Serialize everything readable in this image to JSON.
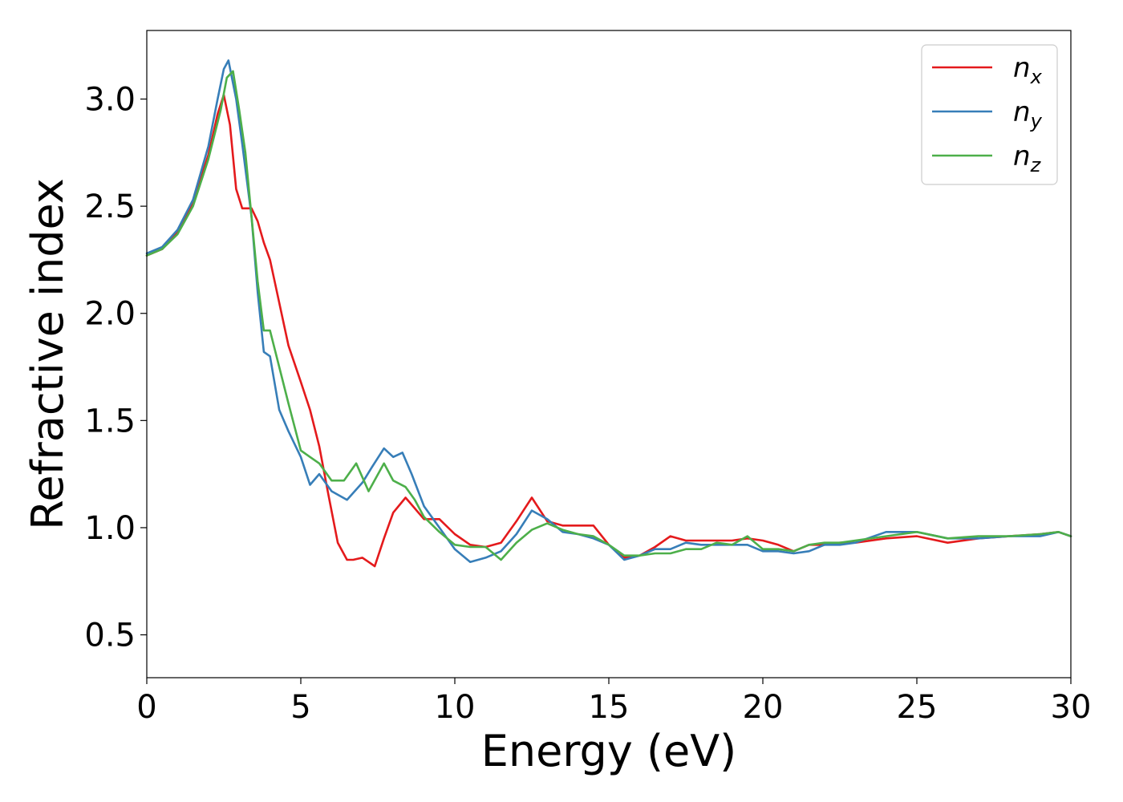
{
  "chart_data": {
    "type": "line",
    "xlabel": "Energy (eV)",
    "ylabel": "Refractive index",
    "xlim": [
      0,
      30
    ],
    "ylim": [
      0.3,
      3.32
    ],
    "xticks": [
      0,
      5,
      10,
      15,
      20,
      25,
      30
    ],
    "xtick_labels": [
      "0",
      "5",
      "10",
      "15",
      "20",
      "25",
      "30"
    ],
    "yticks": [
      0.5,
      1.0,
      1.5,
      2.0,
      2.5,
      3.0
    ],
    "ytick_labels": [
      "0.5",
      "1.0",
      "1.5",
      "2.0",
      "2.5",
      "3.0"
    ],
    "grid": false,
    "legend_position": "top-right",
    "series": [
      {
        "name": "n_x",
        "label_base": "n",
        "label_sub": "x",
        "color": "#e41a1c",
        "x": [
          0,
          0.5,
          1.0,
          1.5,
          2.0,
          2.3,
          2.5,
          2.7,
          2.9,
          3.1,
          3.4,
          3.6,
          3.8,
          4.0,
          4.3,
          4.6,
          5.0,
          5.3,
          5.6,
          5.9,
          6.2,
          6.5,
          6.7,
          7.0,
          7.2,
          7.4,
          7.7,
          8.0,
          8.4,
          8.7,
          9.0,
          9.5,
          10.0,
          10.5,
          11.0,
          11.5,
          12.0,
          12.5,
          13.0,
          13.5,
          14.0,
          14.5,
          15.0,
          15.5,
          16.0,
          16.5,
          17.0,
          17.5,
          18.0,
          18.5,
          19.0,
          19.5,
          20.0,
          20.5,
          21.0,
          21.5,
          22.0,
          22.5,
          23.0,
          24.0,
          25.0,
          26.0,
          27.0,
          28.0,
          29.0,
          29.6,
          30.0
        ],
        "y": [
          2.27,
          2.3,
          2.38,
          2.52,
          2.74,
          2.93,
          3.02,
          2.88,
          2.58,
          2.49,
          2.49,
          2.43,
          2.33,
          2.25,
          2.05,
          1.85,
          1.68,
          1.55,
          1.38,
          1.15,
          0.93,
          0.85,
          0.85,
          0.86,
          0.84,
          0.82,
          0.95,
          1.07,
          1.14,
          1.09,
          1.04,
          1.04,
          0.97,
          0.92,
          0.91,
          0.93,
          1.03,
          1.14,
          1.03,
          1.01,
          1.01,
          1.01,
          0.92,
          0.86,
          0.87,
          0.91,
          0.96,
          0.94,
          0.94,
          0.94,
          0.94,
          0.95,
          0.94,
          0.92,
          0.89,
          0.92,
          0.92,
          0.93,
          0.93,
          0.95,
          0.96,
          0.93,
          0.95,
          0.96,
          0.97,
          0.98,
          0.96
        ]
      },
      {
        "name": "n_y",
        "label_base": "n",
        "label_sub": "y",
        "color": "#377eb8",
        "x": [
          0,
          0.5,
          1.0,
          1.5,
          2.0,
          2.3,
          2.5,
          2.65,
          2.9,
          3.1,
          3.4,
          3.6,
          3.8,
          4.0,
          4.3,
          4.6,
          5.0,
          5.3,
          5.6,
          6.0,
          6.5,
          7.0,
          7.3,
          7.7,
          8.0,
          8.3,
          8.6,
          9.0,
          9.5,
          10.0,
          10.5,
          11.0,
          11.5,
          12.0,
          12.5,
          13.0,
          13.5,
          14.0,
          14.5,
          15.0,
          15.5,
          16.0,
          16.5,
          17.0,
          17.5,
          18.0,
          18.5,
          19.0,
          19.5,
          20.0,
          20.5,
          21.0,
          21.5,
          22.0,
          22.5,
          23.0,
          24.0,
          25.0,
          26.0,
          27.0,
          28.0,
          29.0,
          29.6,
          30.0
        ],
        "y": [
          2.28,
          2.31,
          2.39,
          2.53,
          2.78,
          3.0,
          3.14,
          3.18,
          3.0,
          2.79,
          2.45,
          2.1,
          1.82,
          1.8,
          1.55,
          1.45,
          1.33,
          1.2,
          1.25,
          1.17,
          1.13,
          1.21,
          1.28,
          1.37,
          1.33,
          1.35,
          1.25,
          1.1,
          1.0,
          0.9,
          0.84,
          0.86,
          0.89,
          0.97,
          1.08,
          1.04,
          0.98,
          0.97,
          0.95,
          0.92,
          0.85,
          0.87,
          0.9,
          0.9,
          0.93,
          0.92,
          0.92,
          0.92,
          0.92,
          0.89,
          0.89,
          0.88,
          0.89,
          0.92,
          0.92,
          0.93,
          0.98,
          0.98,
          0.95,
          0.95,
          0.96,
          0.96,
          0.98,
          0.96
        ]
      },
      {
        "name": "n_z",
        "label_base": "n",
        "label_sub": "z",
        "color": "#4daf4a",
        "x": [
          0,
          0.5,
          1.0,
          1.5,
          2.0,
          2.4,
          2.6,
          2.8,
          3.0,
          3.2,
          3.4,
          3.6,
          3.8,
          4.0,
          4.3,
          4.6,
          5.0,
          5.3,
          5.6,
          6.0,
          6.4,
          6.8,
          7.2,
          7.7,
          8.0,
          8.4,
          8.7,
          9.0,
          9.5,
          10.0,
          10.5,
          11.0,
          11.5,
          12.0,
          12.5,
          13.0,
          13.5,
          14.0,
          14.5,
          15.0,
          15.5,
          16.0,
          16.5,
          17.0,
          17.5,
          18.0,
          18.5,
          19.0,
          19.5,
          20.0,
          20.5,
          21.0,
          21.5,
          22.0,
          22.5,
          23.0,
          24.0,
          25.0,
          26.0,
          27.0,
          28.0,
          29.0,
          29.6,
          30.0
        ],
        "y": [
          2.27,
          2.3,
          2.37,
          2.5,
          2.72,
          2.95,
          3.1,
          3.13,
          2.95,
          2.75,
          2.45,
          2.15,
          1.92,
          1.92,
          1.75,
          1.58,
          1.36,
          1.33,
          1.3,
          1.22,
          1.22,
          1.3,
          1.17,
          1.3,
          1.22,
          1.19,
          1.13,
          1.05,
          0.98,
          0.92,
          0.91,
          0.91,
          0.85,
          0.93,
          0.99,
          1.02,
          0.99,
          0.97,
          0.96,
          0.92,
          0.87,
          0.87,
          0.88,
          0.88,
          0.9,
          0.9,
          0.93,
          0.92,
          0.96,
          0.9,
          0.9,
          0.89,
          0.92,
          0.93,
          0.93,
          0.94,
          0.96,
          0.98,
          0.95,
          0.96,
          0.96,
          0.97,
          0.98,
          0.96
        ]
      }
    ]
  }
}
